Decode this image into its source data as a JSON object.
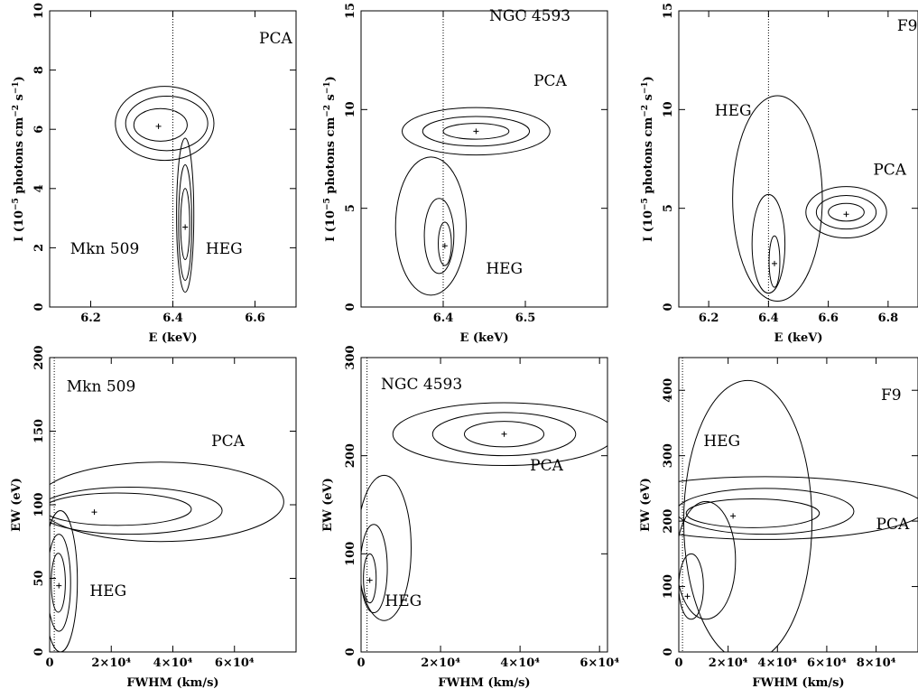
{
  "figure": {
    "panel_count": 6
  },
  "chart_data": [
    {
      "id": "p1",
      "type": "contour",
      "xlabel": "E (keV)",
      "ylabel": "I (10^-5 photons cm^-2 s^-1)",
      "xlim": [
        6.1,
        6.7
      ],
      "ylim": [
        0,
        10
      ],
      "xticks": [
        6.2,
        6.4,
        6.6
      ],
      "xtick_labels": [
        "6.2",
        "6.4",
        "6.6"
      ],
      "yticks": [
        0,
        2,
        4,
        6,
        8,
        10
      ],
      "ytick_labels": [
        "0",
        "2",
        "4",
        "6",
        "8",
        "10"
      ],
      "ref_line_x": 6.4,
      "series": [
        {
          "name": "PCA",
          "best_fit": [
            6.365,
            6.1
          ],
          "contours": [
            {
              "cx": 6.38,
              "cy": 6.2,
              "rx": 0.12,
              "ry": 1.25
            },
            {
              "cx": 6.385,
              "cy": 6.2,
              "rx": 0.1,
              "ry": 0.92
            },
            {
              "cx": 6.37,
              "cy": 6.15,
              "rx": 0.065,
              "ry": 0.55
            }
          ]
        },
        {
          "name": "HEG",
          "best_fit": [
            6.43,
            2.7
          ],
          "contours": [
            {
              "cx": 6.43,
              "cy": 3.1,
              "rx": 0.021,
              "ry": 2.6
            },
            {
              "cx": 6.43,
              "cy": 2.85,
              "rx": 0.016,
              "ry": 1.95
            },
            {
              "cx": 6.43,
              "cy": 2.8,
              "rx": 0.011,
              "ry": 1.2
            }
          ]
        }
      ],
      "annotations": [
        {
          "text": "PCA",
          "x": 6.61,
          "y": 8.9
        },
        {
          "text": "Mkn 509",
          "x": 6.15,
          "y": 1.8
        },
        {
          "text": "HEG",
          "x": 6.48,
          "y": 1.8
        }
      ]
    },
    {
      "id": "p2",
      "type": "contour",
      "xlabel": "E (keV)",
      "ylabel": "I (10^-5 photons cm^-2 s^-1)",
      "xlim": [
        6.3,
        6.6
      ],
      "ylim": [
        0,
        15
      ],
      "xticks": [
        6.4,
        6.5
      ],
      "xtick_labels": [
        "6.4",
        "6.5"
      ],
      "yticks": [
        0,
        5,
        10,
        15
      ],
      "ytick_labels": [
        "0",
        "5",
        "10",
        "15"
      ],
      "ref_line_x": 6.4,
      "series": [
        {
          "name": "PCA",
          "best_fit": [
            6.44,
            8.9
          ],
          "contours": [
            {
              "cx": 6.44,
              "cy": 8.9,
              "rx": 0.09,
              "ry": 1.2
            },
            {
              "cx": 6.44,
              "cy": 8.9,
              "rx": 0.065,
              "ry": 0.75
            },
            {
              "cx": 6.44,
              "cy": 8.9,
              "rx": 0.04,
              "ry": 0.4
            }
          ]
        },
        {
          "name": "HEG",
          "best_fit": [
            6.402,
            3.1
          ],
          "contours": [
            {
              "cx": 6.385,
              "cy": 4.1,
              "rx": 0.043,
              "ry": 3.5
            },
            {
              "cx": 6.395,
              "cy": 3.6,
              "rx": 0.018,
              "ry": 1.9
            },
            {
              "cx": 6.402,
              "cy": 3.2,
              "rx": 0.008,
              "ry": 1.1
            }
          ]
        }
      ],
      "annotations": [
        {
          "text": "NGC 4593",
          "x": 6.456,
          "y": 14.5
        },
        {
          "text": "PCA",
          "x": 6.51,
          "y": 11.2
        },
        {
          "text": "HEG",
          "x": 6.452,
          "y": 1.7
        }
      ]
    },
    {
      "id": "p3",
      "type": "contour",
      "xlabel": "E (keV)",
      "ylabel": "I (10^-5 photons cm^-2 s^-1)",
      "xlim": [
        6.1,
        6.9
      ],
      "ylim": [
        0,
        15
      ],
      "xticks": [
        6.2,
        6.4,
        6.6,
        6.8
      ],
      "xtick_labels": [
        "6.2",
        "6.4",
        "6.6",
        "6.8"
      ],
      "yticks": [
        0,
        5,
        10,
        15
      ],
      "ytick_labels": [
        "0",
        "5",
        "10",
        "15"
      ],
      "ref_line_x": 6.4,
      "series": [
        {
          "name": "PCA",
          "best_fit": [
            6.66,
            4.7
          ],
          "contours": [
            {
              "cx": 6.66,
              "cy": 4.8,
              "rx": 0.135,
              "ry": 1.3
            },
            {
              "cx": 6.66,
              "cy": 4.8,
              "rx": 0.1,
              "ry": 0.85
            },
            {
              "cx": 6.66,
              "cy": 4.8,
              "rx": 0.06,
              "ry": 0.45
            }
          ]
        },
        {
          "name": "HEG",
          "best_fit": [
            6.42,
            2.2
          ],
          "contours": [
            {
              "cx": 6.43,
              "cy": 5.5,
              "rx": 0.15,
              "ry": 5.2
            },
            {
              "cx": 6.4,
              "cy": 3.2,
              "rx": 0.055,
              "ry": 2.5
            },
            {
              "cx": 6.42,
              "cy": 2.3,
              "rx": 0.018,
              "ry": 1.3
            }
          ]
        }
      ],
      "annotations": [
        {
          "text": "F9",
          "x": 6.83,
          "y": 14.0
        },
        {
          "text": "HEG",
          "x": 6.22,
          "y": 9.7
        },
        {
          "text": "PCA",
          "x": 6.75,
          "y": 6.7
        }
      ]
    },
    {
      "id": "p4",
      "type": "contour",
      "xlabel": "FWHM (km/s)",
      "ylabel": "EW (eV)",
      "xlim": [
        0,
        80000
      ],
      "ylim": [
        0,
        200
      ],
      "xticks": [
        0,
        20000,
        40000,
        60000
      ],
      "xtick_labels": [
        "0",
        "2×10⁴",
        "4×10⁴",
        "6×10⁴"
      ],
      "yticks": [
        0,
        50,
        100,
        150,
        200
      ],
      "ytick_labels": [
        "0",
        "50",
        "100",
        "150",
        "200"
      ],
      "ref_line_x": 1500,
      "series": [
        {
          "name": "PCA",
          "best_fit": [
            14500,
            95
          ],
          "contours": [
            {
              "cx": 36000,
              "cy": 102,
              "rx": 40000,
              "ry": 27
            },
            {
              "cx": 26000,
              "cy": 96,
              "rx": 30000,
              "ry": 16
            },
            {
              "cx": 22000,
              "cy": 97,
              "rx": 24000,
              "ry": 11
            }
          ]
        },
        {
          "name": "HEG",
          "best_fit": [
            3000,
            45
          ],
          "contours": [
            {
              "cx": 3500,
              "cy": 48,
              "rx": 5500,
              "ry": 48
            },
            {
              "cx": 3000,
              "cy": 47,
              "rx": 3800,
              "ry": 33
            },
            {
              "cx": 2800,
              "cy": 47,
              "rx": 2300,
              "ry": 20
            }
          ]
        }
      ],
      "annotations": [
        {
          "text": "Mkn 509",
          "x": 5500,
          "y": 177
        },
        {
          "text": "PCA",
          "x": 52500,
          "y": 140
        },
        {
          "text": "HEG",
          "x": 13000,
          "y": 38
        }
      ]
    },
    {
      "id": "p5",
      "type": "contour",
      "xlabel": "FWHM (km/s)",
      "ylabel": "EW (eV)",
      "xlim": [
        0,
        62000
      ],
      "ylim": [
        0,
        300
      ],
      "xticks": [
        0,
        20000,
        40000,
        60000
      ],
      "xtick_labels": [
        "0",
        "2×10⁴",
        "4×10⁴",
        "6×10⁴"
      ],
      "yticks": [
        0,
        100,
        200,
        300
      ],
      "ytick_labels": [
        "0",
        "100",
        "200",
        "300"
      ],
      "ref_line_x": 1500,
      "series": [
        {
          "name": "PCA",
          "best_fit": [
            36000,
            222
          ],
          "contours": [
            {
              "cx": 36000,
              "cy": 222,
              "rx": 28000,
              "ry": 32
            },
            {
              "cx": 36000,
              "cy": 222,
              "rx": 18000,
              "ry": 22
            },
            {
              "cx": 36000,
              "cy": 222,
              "rx": 10000,
              "ry": 13
            }
          ]
        },
        {
          "name": "HEG",
          "best_fit": [
            2200,
            73
          ],
          "contours": [
            {
              "cx": 5800,
              "cy": 106,
              "rx": 6800,
              "ry": 74
            },
            {
              "cx": 3200,
              "cy": 85,
              "rx": 3400,
              "ry": 45
            },
            {
              "cx": 2200,
              "cy": 75,
              "rx": 1600,
              "ry": 25
            }
          ]
        }
      ],
      "annotations": [
        {
          "text": "NGC 4593",
          "x": 5000,
          "y": 268
        },
        {
          "text": "PCA",
          "x": 42500,
          "y": 185
        },
        {
          "text": "HEG",
          "x": 6000,
          "y": 47
        }
      ]
    },
    {
      "id": "p6",
      "type": "contour",
      "xlabel": "FWHM (km/s)",
      "ylabel": "EW (eV)",
      "xlim": [
        0,
        97000
      ],
      "ylim": [
        0,
        450
      ],
      "xticks": [
        0,
        20000,
        40000,
        60000,
        80000
      ],
      "xtick_labels": [
        "0",
        "2×10⁴",
        "4×10⁴",
        "6×10⁴",
        "8×10⁴"
      ],
      "yticks": [
        0,
        100,
        200,
        300,
        400
      ],
      "ytick_labels": [
        "0",
        "100",
        "200",
        "300",
        "400"
      ],
      "ref_line_x": 1500,
      "series": [
        {
          "name": "PCA",
          "best_fit": [
            22000,
            208
          ],
          "contours": [
            {
              "cx": 35000,
              "cy": 220,
              "rx": 65000,
              "ry": 48
            },
            {
              "cx": 35000,
              "cy": 215,
              "rx": 36000,
              "ry": 35
            },
            {
              "cx": 30000,
              "cy": 212,
              "rx": 27000,
              "ry": 22
            }
          ]
        },
        {
          "name": "HEG",
          "best_fit": [
            3500,
            85
          ],
          "contours": [
            {
              "cx": 28000,
              "cy": 200,
              "rx": 26000,
              "ry": 215
            },
            {
              "cx": 11000,
              "cy": 140,
              "rx": 12000,
              "ry": 90
            },
            {
              "cx": 5000,
              "cy": 100,
              "rx": 5000,
              "ry": 50
            }
          ]
        }
      ],
      "annotations": [
        {
          "text": "F9",
          "x": 82000,
          "y": 385
        },
        {
          "text": "HEG",
          "x": 10000,
          "y": 315
        },
        {
          "text": "PCA",
          "x": 80000,
          "y": 188
        }
      ]
    }
  ]
}
